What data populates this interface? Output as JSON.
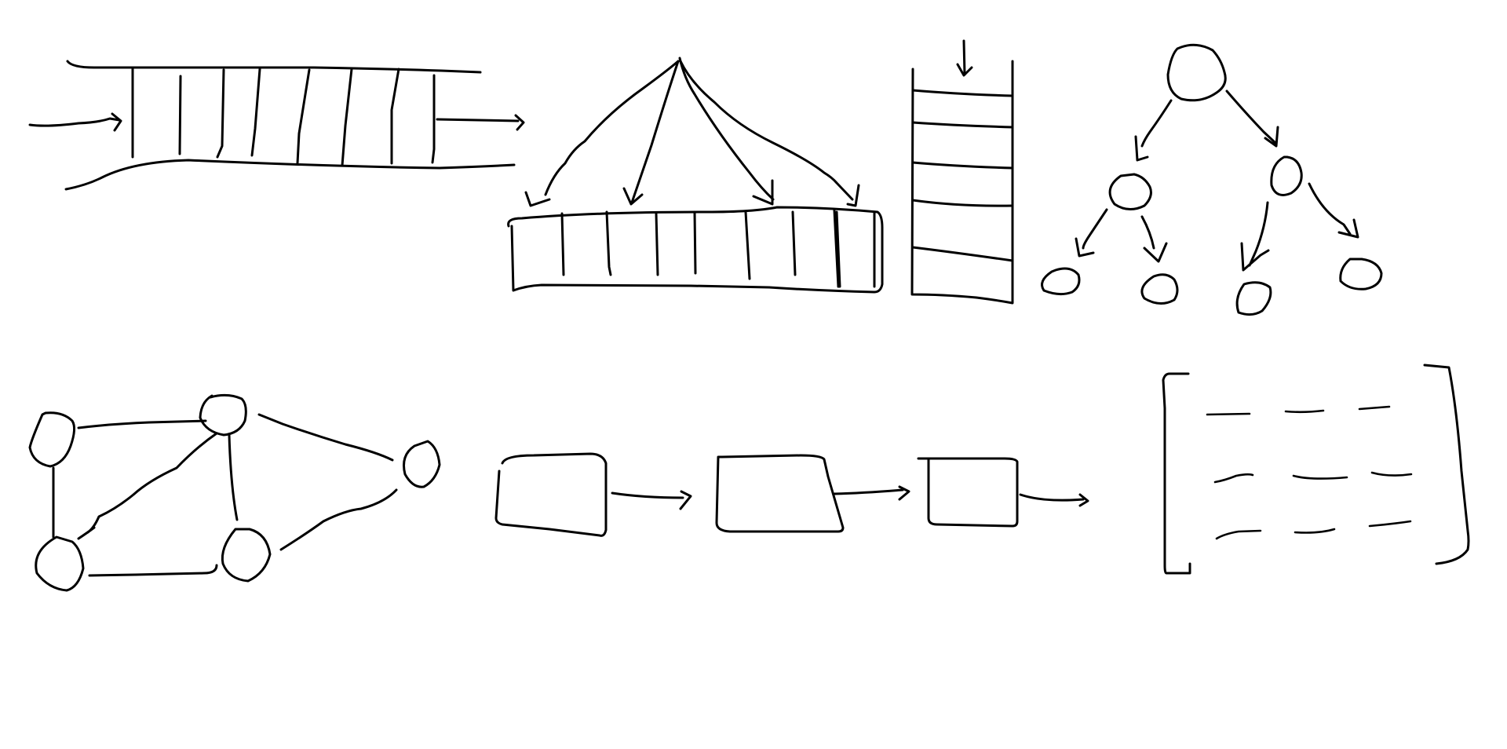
{
  "canvas": {
    "background": "#ffffff",
    "ink_color": "#000000"
  },
  "sketches": [
    {
      "name": "queue-sketch"
    },
    {
      "name": "array-sketch"
    },
    {
      "name": "stack-sketch"
    },
    {
      "name": "tree-sketch"
    },
    {
      "name": "graph-sketch"
    },
    {
      "name": "linked-list-sketch"
    },
    {
      "name": "matrix-sketch"
    }
  ]
}
